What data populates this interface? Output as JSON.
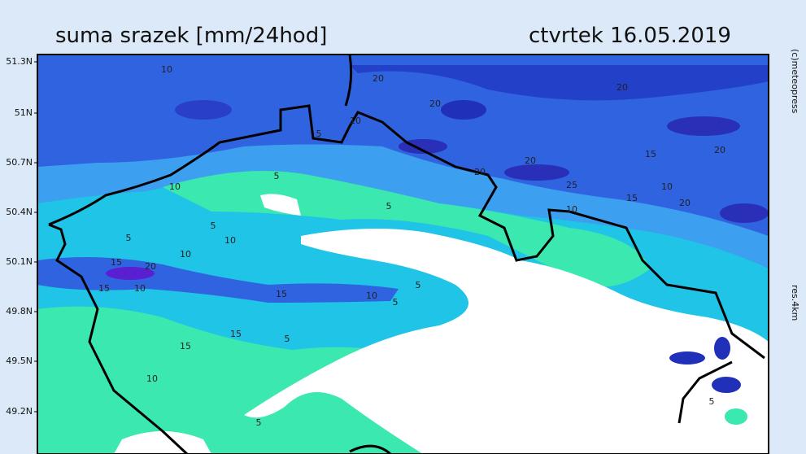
{
  "header": {
    "title": "suma srazek [mm/24hod]",
    "date": "ctvrtek 16.05.2019"
  },
  "side": {
    "copyright": "(c)meteopress",
    "resolution": "res.4km"
  },
  "latitude_labels": [
    "51.3N",
    "51N",
    "50.7N",
    "50.4N",
    "50.1N",
    "49.8N",
    "49.5N",
    "49.2N"
  ],
  "contour_labels": [
    "10",
    "20",
    "20",
    "5",
    "10",
    "20",
    "20",
    "15",
    "20",
    "20",
    "25",
    "10",
    "15",
    "20",
    "10",
    "5",
    "5",
    "10",
    "5",
    "5",
    "10",
    "10",
    "15",
    "20",
    "15",
    "10",
    "15",
    "5",
    "10",
    "5",
    "15",
    "5",
    "15",
    "10",
    "5",
    "5"
  ]
}
